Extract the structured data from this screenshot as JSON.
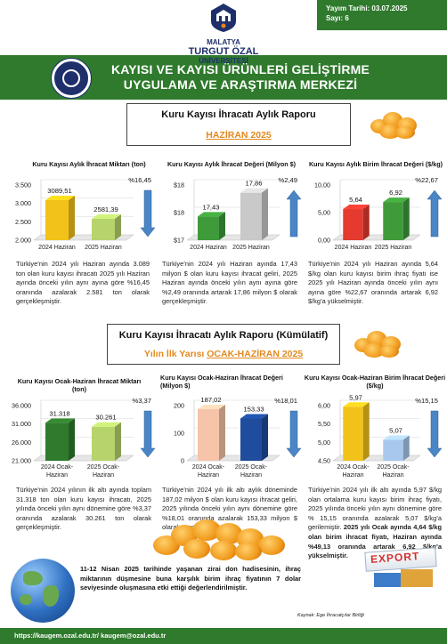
{
  "header": {
    "publish_date": "Yayım Tarihi: 03.07.2025",
    "issue": "Sayı: 6",
    "university_line1": "MALATYA",
    "university_line2": "TURGUT ÖZAL",
    "university_line3": "ÜNİVERSİTESİ",
    "center_title_1": "KAYISI VE KAYISI ÜRÜNLERİ GELİŞTİRME",
    "center_title_2": "UYGULAMA VE ARAŞTIRMA MERKEZİ"
  },
  "monthly": {
    "title": "Kuru Kayısı İhracatı Aylık Raporu",
    "subtitle": "HAZİRAN 2025"
  },
  "cumulative": {
    "title": "Kuru Kayısı İhracatı Aylık Raporu (Kümülatif)",
    "subtitle_prefix": "Yılın İlk Yarısı ",
    "subtitle_link": "OCAK-HAZİRAN 2025"
  },
  "chart_data": [
    {
      "type": "bar",
      "title": "Kuru Kayısı Aylık İhracat Miktarı (ton)",
      "categories": [
        "2024 Haziran",
        "2025 Haziran"
      ],
      "values": [
        3089.51,
        2581.39
      ],
      "value_labels": [
        "3089,51",
        "2581,39"
      ],
      "change_label": "%16,45",
      "change_direction": "down",
      "ytick_labels": [
        "2.000",
        "2.500",
        "3.000",
        "3.500"
      ],
      "ylim": [
        2000,
        3500
      ],
      "colors": [
        "#f2c21a",
        "#b7d36b"
      ]
    },
    {
      "type": "bar",
      "title": "Kuru Kayısı Aylık İhracat Değeri (Milyon $)",
      "categories": [
        "2024 Haziran",
        "2025 Haziran"
      ],
      "values": [
        17.43,
        17.86
      ],
      "value_labels": [
        "17,43",
        "17,86"
      ],
      "change_label": "%2,49",
      "change_direction": "up",
      "ytick_labels": [
        "$17",
        "$18",
        "$18"
      ],
      "ylim": [
        17.0,
        18.0
      ],
      "colors": [
        "#3f9b3a",
        "#c9c9c9"
      ]
    },
    {
      "type": "bar",
      "title": "Kuru Kayısı Aylık Birim İhracat Değeri ($/kg)",
      "categories": [
        "2024 Haziran",
        "2025 Haziran"
      ],
      "values": [
        5.64,
        6.92
      ],
      "value_labels": [
        "5,64",
        "6,92"
      ],
      "change_label": "%22,67",
      "change_direction": "up",
      "ytick_labels": [
        "0,00",
        "5,00",
        "10,00"
      ],
      "ylim": [
        0,
        10
      ],
      "colors": [
        "#e53a2f",
        "#3f9b3a"
      ]
    },
    {
      "type": "bar",
      "title": "Kuru Kayısı Ocak-Haziran İhracat Miktarı (ton)",
      "categories": [
        "2024 Ocak-Haziran",
        "2025 Ocak-Haziran"
      ],
      "values": [
        31318,
        30261
      ],
      "value_labels": [
        "31.318",
        "30.261"
      ],
      "change_label": "%3,37",
      "change_direction": "down",
      "ytick_labels": [
        "21.000",
        "26.000",
        "31.000",
        "36.000"
      ],
      "ylim": [
        21000,
        36000
      ],
      "colors": [
        "#2f7a2c",
        "#b7d36b"
      ]
    },
    {
      "type": "bar",
      "title": "Kuru Kayısı Ocak-Haziran İhracat Değeri (Milyon $)",
      "categories": [
        "2024 Ocak-Haziran",
        "2025 Ocak-Haziran"
      ],
      "values": [
        187.02,
        153.33
      ],
      "value_labels": [
        "187,02",
        "153,33"
      ],
      "change_label": "%18,01",
      "change_direction": "down",
      "ytick_labels": [
        "0",
        "100",
        "200"
      ],
      "ylim": [
        0,
        200
      ],
      "colors": [
        "#f6c4a8",
        "#1f4c9c"
      ]
    },
    {
      "type": "bar",
      "title": "Kuru Kayısı Ocak-Haziran Birim İhracat Değeri ($/kg)",
      "categories": [
        "2024 Ocak-Haziran",
        "2025 Ocak-Haziran"
      ],
      "values": [
        5.97,
        5.07
      ],
      "value_labels": [
        "5,97",
        "5,07"
      ],
      "change_label": "%15,15",
      "change_direction": "down",
      "ytick_labels": [
        "4,50",
        "5,00",
        "5,50",
        "6,00"
      ],
      "ylim": [
        4.5,
        6.0
      ],
      "colors": [
        "#f2c21a",
        "#a9c8ee"
      ]
    }
  ],
  "paragraphs": {
    "p1": "Türkiye’nin 2024 yılı Haziran ayında 3.089 ton olan kuru kayısı ihracatı 2025 yılı Haziran ayında önceki yılın aynı ayına göre %16,45 oranında azalarak 2.581 ton olarak gerçekleşmiştir.",
    "p2": "Türkiye’nin 2024 yılı Haziran ayında 17,43 milyon $ olan kuru kayısı ihracat geliri, 2025 Haziran ayında önceki yılın aynı ayına göre %2,49 oranında artarak 17,86 milyon $ olarak gerçekleşmiştir.",
    "p3": "Türkiye’nin 2024 yılı Haziran ayında 5,64 $/kg olan kuru kayısı birim ihraç fiyatı ise 2025 yılı Haziran ayında önceki yılın aynı ayına göre %22,67 oranında artarak 6,92 $/kg’a yükselmiştir.",
    "p4": "Türkiye’nin 2024 yılının ilk altı ayında toplam 31.318 ton olan kuru kayısı ihracatı, 2025 yılında önceki yılın aynı dönemine göre %3,37 oranında azalarak 30.261 ton olarak gerçekleşmiştir.",
    "p5": "Türkiye’nin 2024 yılı ilk altı aylık döneminde 187,02 milyon $ olan kuru kayısı ihracat geliri, 2025 yılında önceki yılın aynı dönemine göre %18,01 oranında azalarak 153,33 milyon $ olarak gerçekleşmiştir.",
    "p6_a": "Türkiye’nin 2024 yılı ilk altı ayında 5,97 $/kg olan ortalama kuru kayısı birim ihraç fiyatı, 2025 yılında önceki yılın aynı dönemine göre % 15,15 oranında azalarak 5,07 $/kg’a gerilemiştir. ",
    "p6_b": "2025 yılı Ocak ayında 4,64 $/kg olan birim ihracat fiyatı, Haziran ayında %49,13 oranında artarak 6,92 $/kg’a yükselmiştir."
  },
  "note": "11-12 Nisan 2025 tarihinde yaşanan zirai don hadisesinin, ihraç miktarının düşmesine buna karşılık birim ihraç fiyatının 7 dolar seviyesinde oluşmasına etki ettiği değerlendirilmiştir.",
  "source": "Kaynak: Ege İhracatçılar Birliği",
  "export_sign": "EXPORT",
  "footer": "https://kaugem.ozal.edu.tr/ kaugem@ozal.edu.tr",
  "colors": {
    "brand_green": "#2f7a2c",
    "accent_orange": "#e3891e",
    "navy": "#1e2f6b",
    "arrow_blue": "#4a86c5"
  }
}
